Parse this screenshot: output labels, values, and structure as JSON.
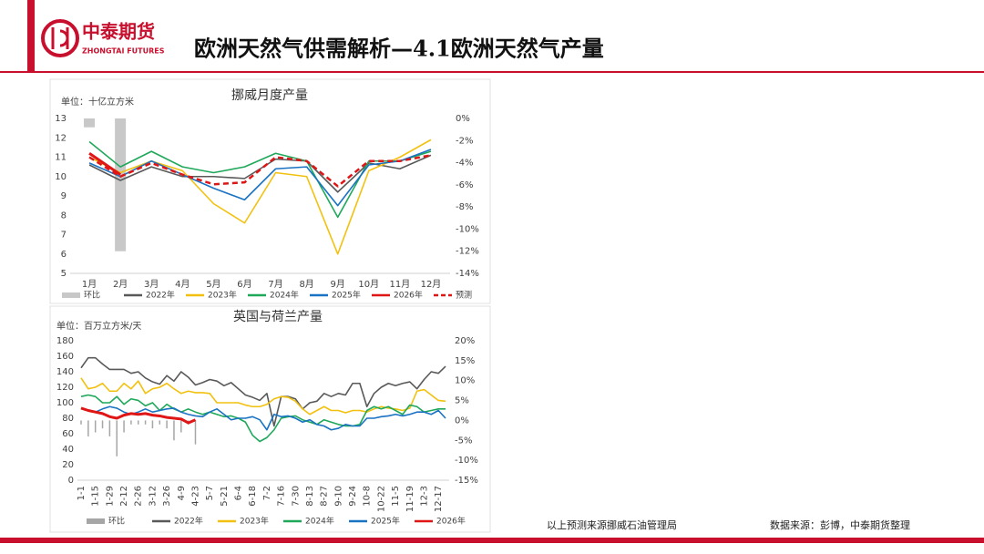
{
  "header": {
    "logo_text": "中泰期货",
    "logo_sub": "ZHONGTAI FUTURES",
    "title": "欧洲天然气供需解析—4.1欧洲天然气产量"
  },
  "footer": {
    "note": "以上预测来源挪威石油管理局",
    "source": "数据来源：彭博，中泰期货整理"
  },
  "chart_data": [
    {
      "type": "line",
      "title": "挪威月度产量",
      "y_label": "单位：十亿立方米",
      "categories": [
        "1月",
        "2月",
        "3月",
        "4月",
        "5月",
        "6月",
        "7月",
        "8月",
        "9月",
        "10月",
        "11月",
        "12月"
      ],
      "ylim": [
        5,
        13
      ],
      "yticks": [
        5,
        6,
        7,
        8,
        9,
        10,
        11,
        12,
        13
      ],
      "y2lim": [
        -14,
        0
      ],
      "y2ticks": [
        {
          "value": 0,
          "label": "0%"
        },
        {
          "value": -2,
          "label": "-2%"
        },
        {
          "value": -4,
          "label": "-4%"
        },
        {
          "value": -6,
          "label": "-6%"
        },
        {
          "value": -8,
          "label": "-8%"
        },
        {
          "value": -10,
          "label": "-10%"
        },
        {
          "value": -12,
          "label": "-12%"
        },
        {
          "value": -14,
          "label": "-14%"
        }
      ],
      "series": [
        {
          "name": "环比",
          "type": "bar",
          "axis": "y2",
          "color": "#c8c8c8",
          "values": [
            -0.8,
            -12,
            null,
            null,
            null,
            null,
            null,
            null,
            null,
            null,
            null,
            null
          ]
        },
        {
          "name": "2022年",
          "color": "#595959",
          "values": [
            10.6,
            9.8,
            10.5,
            10.0,
            10.0,
            9.9,
            10.9,
            10.8,
            9.2,
            10.7,
            10.4,
            11.1
          ]
        },
        {
          "name": "2023年",
          "color": "#f2c10f",
          "values": [
            11.0,
            10.2,
            10.8,
            10.3,
            8.6,
            7.6,
            10.2,
            10.0,
            6.0,
            10.3,
            11.0,
            11.9
          ]
        },
        {
          "name": "2024年",
          "color": "#1fa85a",
          "values": [
            11.8,
            10.5,
            11.3,
            10.5,
            10.2,
            10.5,
            11.2,
            10.8,
            7.9,
            10.8,
            10.8,
            11.3
          ]
        },
        {
          "name": "2025年",
          "color": "#1a72c2",
          "values": [
            10.7,
            10.0,
            10.8,
            10.1,
            9.4,
            8.8,
            10.4,
            10.5,
            8.5,
            10.6,
            10.8,
            11.4
          ]
        },
        {
          "name": "2026年",
          "color": "#e01515",
          "values": [
            11.2,
            10.1,
            null,
            null,
            null,
            null,
            null,
            null,
            null,
            null,
            null,
            null
          ]
        },
        {
          "name": "预测",
          "color": "#e01515",
          "dashed": true,
          "values": [
            11.0,
            10.0,
            10.7,
            10.1,
            9.6,
            9.7,
            11.0,
            10.8,
            9.5,
            10.8,
            10.8,
            11.1
          ]
        }
      ]
    },
    {
      "type": "line",
      "title": "英国与荷兰产量",
      "y_label": "单位：百万立方米/天",
      "categories": [
        "1-1",
        null,
        "1-15",
        null,
        "1-29",
        null,
        "2-12",
        null,
        "2-26",
        null,
        "3-12",
        null,
        "3-26",
        null,
        "4-9",
        null,
        "4-23",
        null,
        "5-7",
        null,
        "5-21",
        null,
        "6-4",
        null,
        "6-18",
        null,
        "7-2",
        null,
        "7-16",
        null,
        "7-30",
        null,
        "8-13",
        null,
        "8-27",
        null,
        "9-10",
        null,
        "9-24",
        null,
        "10-8",
        null,
        "10-22",
        null,
        "11-5",
        null,
        "11-19",
        null,
        "12-3",
        null,
        "12-17",
        null
      ],
      "ylim": [
        0,
        180
      ],
      "yticks": [
        0,
        20,
        40,
        60,
        80,
        100,
        120,
        140,
        160,
        180
      ],
      "y2lim": [
        -15,
        20
      ],
      "y2ticks": [
        {
          "value": -15,
          "label": "-15%"
        },
        {
          "value": -10,
          "label": "-10%"
        },
        {
          "value": -5,
          "label": "-5%"
        },
        {
          "value": 0,
          "label": "0%"
        },
        {
          "value": 5,
          "label": "5%"
        },
        {
          "value": 10,
          "label": "10%"
        },
        {
          "value": 15,
          "label": "15%"
        },
        {
          "value": 20,
          "label": "20%"
        }
      ],
      "series": [
        {
          "name": "环比",
          "type": "bar",
          "axis": "y2",
          "color": "#a6a6a6",
          "values": [
            -1,
            -4,
            -3,
            -2,
            -4,
            -9,
            -3,
            -1,
            -1,
            -1,
            -2,
            -1,
            -2,
            -5,
            -3,
            -1,
            -6,
            null,
            null,
            null,
            null,
            null,
            null,
            null,
            null,
            null,
            null,
            null,
            null,
            null,
            null,
            null,
            null,
            null,
            null,
            null,
            null,
            null,
            null,
            null,
            null,
            null,
            null,
            null,
            null,
            null,
            null,
            null,
            null,
            null,
            null,
            null
          ]
        },
        {
          "name": "2022年",
          "color": "#595959",
          "values": [
            145,
            158,
            158,
            150,
            143,
            143,
            143,
            138,
            140,
            132,
            127,
            124,
            135,
            128,
            140,
            133,
            123,
            126,
            130,
            128,
            122,
            126,
            118,
            110,
            107,
            103,
            112,
            70,
            108,
            108,
            105,
            92,
            100,
            102,
            112,
            108,
            112,
            110,
            125,
            125,
            95,
            112,
            120,
            125,
            122,
            125,
            127,
            118,
            130,
            140,
            138,
            147
          ]
        },
        {
          "name": "2023年",
          "color": "#f2c10f",
          "values": [
            132,
            118,
            120,
            125,
            115,
            115,
            125,
            118,
            128,
            112,
            118,
            120,
            125,
            118,
            112,
            115,
            113,
            113,
            112,
            100,
            100,
            100,
            100,
            97,
            95,
            95,
            98,
            105,
            108,
            107,
            102,
            92,
            85,
            90,
            95,
            90,
            90,
            87,
            90,
            90,
            88,
            92,
            95,
            93,
            92,
            90,
            93,
            115,
            117,
            110,
            103,
            102
          ]
        },
        {
          "name": "2024年",
          "color": "#1fa85a",
          "values": [
            108,
            110,
            108,
            100,
            100,
            108,
            98,
            105,
            103,
            96,
            100,
            90,
            98,
            92,
            88,
            92,
            88,
            85,
            88,
            85,
            82,
            83,
            80,
            75,
            58,
            50,
            55,
            65,
            80,
            82,
            83,
            78,
            75,
            72,
            78,
            75,
            72,
            70,
            70,
            72,
            90,
            95,
            92,
            95,
            90,
            85,
            97,
            95,
            88,
            90,
            92,
            92
          ]
        },
        {
          "name": "2025年",
          "color": "#1a72c2",
          "values": [
            93,
            90,
            88,
            92,
            95,
            93,
            88,
            85,
            88,
            92,
            88,
            90,
            92,
            93,
            88,
            85,
            83,
            82,
            88,
            92,
            85,
            78,
            80,
            80,
            82,
            78,
            65,
            85,
            82,
            83,
            80,
            75,
            78,
            72,
            70,
            65,
            67,
            72,
            70,
            70,
            80,
            80,
            82,
            83,
            85,
            83,
            85,
            88,
            88,
            85,
            90,
            80
          ]
        },
        {
          "name": "2026年",
          "color": "#e01515",
          "values": [
            93,
            90,
            88,
            86,
            82,
            80,
            84,
            86,
            85,
            86,
            84,
            83,
            81,
            80,
            79,
            74,
            78,
            null,
            null,
            null,
            null,
            null,
            null,
            null,
            null,
            null,
            null,
            null,
            null,
            null,
            null,
            null,
            null,
            null,
            null,
            null,
            null,
            null,
            null,
            null,
            null,
            null,
            null,
            null,
            null,
            null,
            null,
            null,
            null,
            null,
            null,
            null
          ]
        }
      ]
    }
  ]
}
